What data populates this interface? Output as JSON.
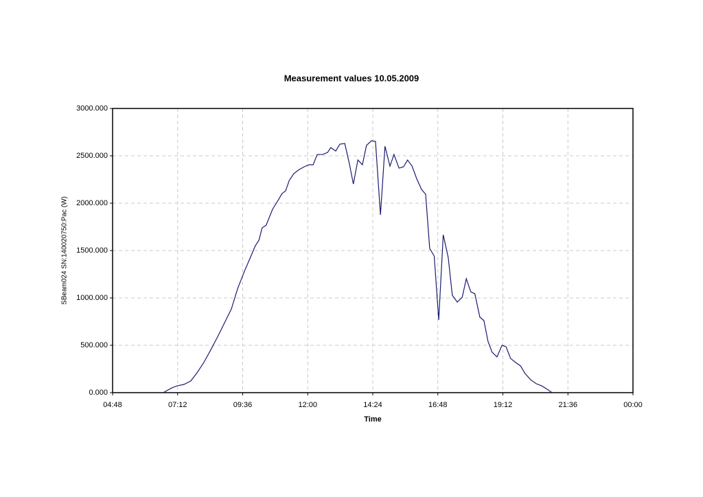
{
  "chart_data": {
    "type": "line",
    "title": "Measurement values 10.05.2009",
    "x_label": "Time",
    "y_label": "SBeam024 SN:140020750:Pac (W)",
    "x": [
      400,
      419,
      431,
      446,
      461,
      475,
      490,
      505,
      521,
      536,
      551,
      565,
      580,
      595,
      604,
      612,
      619,
      628,
      642,
      656,
      663,
      671,
      679,
      689,
      701,
      712,
      723,
      732,
      741,
      753,
      764,
      771,
      782,
      791,
      802,
      812,
      821,
      831,
      841,
      850,
      861,
      870,
      881,
      891,
      902,
      911,
      922,
      932,
      941,
      951,
      961,
      972,
      981,
      990,
      1000,
      1010,
      1020,
      1031,
      1040,
      1051,
      1062,
      1071,
      1081,
      1090,
      1101,
      1110,
      1119,
      1128,
      1139,
      1150,
      1159,
      1169,
      1180,
      1191,
      1201,
      1213,
      1226,
      1238,
      1250,
      1261
    ],
    "series": [
      {
        "name": "SBeam024 SN:140020750:Pac (W)",
        "color": "#1a1a6e",
        "values": [
          0,
          50,
          72,
          87,
          123,
          210,
          319,
          449,
          594,
          739,
          884,
          1101,
          1283,
          1449,
          1551,
          1609,
          1739,
          1768,
          1935,
          2043,
          2101,
          2130,
          2239,
          2311,
          2355,
          2384,
          2406,
          2406,
          2514,
          2514,
          2536,
          2587,
          2551,
          2623,
          2630,
          2420,
          2203,
          2456,
          2406,
          2609,
          2659,
          2652,
          1877,
          2601,
          2391,
          2514,
          2370,
          2384,
          2456,
          2391,
          2261,
          2145,
          2094,
          1522,
          1442,
          768,
          1667,
          1427,
          1029,
          956,
          1007,
          1203,
          1065,
          1043,
          797,
          761,
          543,
          428,
          377,
          500,
          485,
          362,
          319,
          283,
          203,
          138,
          94,
          72,
          36,
          0
        ]
      }
    ],
    "xlim": [
      288,
      1440
    ],
    "xticks": [
      {
        "value": 288,
        "label": "04:48"
      },
      {
        "value": 432,
        "label": "07:12"
      },
      {
        "value": 576,
        "label": "09:36"
      },
      {
        "value": 720,
        "label": "12:00"
      },
      {
        "value": 864,
        "label": "14:24"
      },
      {
        "value": 1008,
        "label": "16:48"
      },
      {
        "value": 1152,
        "label": "19:12"
      },
      {
        "value": 1296,
        "label": "21:36"
      },
      {
        "value": 1440,
        "label": "00:00"
      }
    ],
    "ylim": [
      0,
      3000
    ],
    "yticks": [
      {
        "value": 0,
        "label": "0.000"
      },
      {
        "value": 500,
        "label": "500.000"
      },
      {
        "value": 1000,
        "label": "1000.000"
      },
      {
        "value": 1500,
        "label": "1500.000"
      },
      {
        "value": 2000,
        "label": "2000.000"
      },
      {
        "value": 2500,
        "label": "2500.000"
      },
      {
        "value": 3000,
        "label": "3000.000"
      }
    ],
    "grid": true
  }
}
